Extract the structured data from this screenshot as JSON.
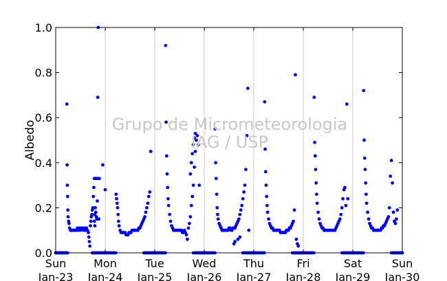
{
  "chart_data": {
    "type": "scatter",
    "title": "",
    "xlabel": "",
    "ylabel": "Albedo",
    "ylim": [
      0.0,
      1.0
    ],
    "xlim": [
      "2011-01-23",
      "2011-01-30"
    ],
    "grid": "vertical lines at day boundaries",
    "legend": "none",
    "marker_color": "#0000ff",
    "watermark": [
      "Grupo de Micrometeorologia",
      "IAG / USP"
    ],
    "yticks": [
      "0.0",
      "0.2",
      "0.4",
      "0.6",
      "0.8",
      "1.0"
    ],
    "xticks": [
      {
        "day": "Sun",
        "date": "Jan-23"
      },
      {
        "day": "Mon",
        "date": "Jan-24"
      },
      {
        "day": "Tue",
        "date": "Jan-25"
      },
      {
        "day": "Wed",
        "date": "Jan-26"
      },
      {
        "day": "Thu",
        "date": "Jan-27"
      },
      {
        "day": "Fri",
        "date": "Jan-28"
      },
      {
        "day": "Sat",
        "date": "Jan-29"
      },
      {
        "day": "Sun",
        "date": "Jan-30"
      }
    ],
    "series": [
      {
        "values_description": "daily daytime albedo; x in days since Jan-23 00:00",
        "x": [
          0.0,
          0.04,
          0.08,
          0.12,
          0.16,
          0.2,
          0.24,
          0.225,
          0.23,
          0.235,
          0.24,
          0.245,
          0.25,
          0.26,
          0.27,
          0.28,
          0.3,
          0.32,
          0.34,
          0.36,
          0.38,
          0.4,
          0.42,
          0.44,
          0.46,
          0.48,
          0.5,
          0.52,
          0.54,
          0.56,
          0.58,
          0.6,
          0.62,
          0.64,
          0.66,
          0.67,
          0.68,
          0.69,
          0.7,
          0.71,
          0.72,
          0.73,
          0.74,
          0.75,
          0.76,
          0.77,
          0.78,
          0.79,
          0.8,
          0.81,
          0.82,
          0.83,
          0.84,
          0.85,
          0.86,
          0.87,
          0.88,
          0.8,
          0.83,
          0.85,
          0.87,
          0.78,
          0.79,
          0.76,
          0.74,
          0.9,
          0.95,
          1.0,
          1.22,
          1.23,
          1.24,
          1.25,
          1.26,
          1.27,
          1.28,
          1.3,
          1.32,
          1.34,
          1.36,
          1.38,
          1.4,
          1.42,
          1.44,
          1.46,
          1.48,
          1.5,
          1.52,
          1.54,
          1.56,
          1.58,
          1.6,
          1.62,
          1.64,
          1.66,
          1.68,
          1.7,
          1.72,
          1.74,
          1.76,
          1.78,
          1.8,
          1.82,
          1.84,
          1.86,
          1.88,
          1.9,
          1.92,
          1.95,
          2.0,
          2.22,
          2.23,
          2.24,
          2.25,
          2.26,
          2.27,
          2.28,
          2.3,
          2.32,
          2.34,
          2.36,
          2.38,
          2.4,
          2.42,
          2.44,
          2.46,
          2.48,
          2.5,
          2.52,
          2.54,
          2.56,
          2.58,
          2.6,
          2.62,
          2.64,
          2.66,
          2.68,
          2.7,
          2.72,
          2.74,
          2.76,
          2.78,
          2.8,
          2.82,
          2.84,
          2.86,
          2.88,
          2.9,
          2.72,
          2.74,
          2.76,
          2.78,
          2.8,
          2.82,
          2.95,
          3.0,
          3.22,
          3.23,
          3.24,
          3.25,
          3.26,
          3.27,
          3.28,
          3.3,
          3.32,
          3.34,
          3.36,
          3.38,
          3.4,
          3.42,
          3.44,
          3.46,
          3.48,
          3.5,
          3.52,
          3.54,
          3.56,
          3.58,
          3.6,
          3.62,
          3.64,
          3.66,
          3.68,
          3.7,
          3.72,
          3.74,
          3.76,
          3.78,
          3.8,
          3.82,
          3.84,
          3.86,
          3.88,
          3.9,
          3.6,
          3.62,
          3.68,
          3.72,
          3.95,
          4.0,
          4.22,
          4.23,
          4.24,
          4.25,
          4.26,
          4.27,
          4.28,
          4.3,
          4.32,
          4.34,
          4.36,
          4.38,
          4.4,
          4.42,
          4.44,
          4.46,
          4.48,
          4.5,
          4.52,
          4.54,
          4.56,
          4.58,
          4.6,
          4.62,
          4.64,
          4.66,
          4.68,
          4.7,
          4.72,
          4.74,
          4.76,
          4.78,
          4.8,
          4.82,
          4.84,
          4.86,
          4.88,
          4.9,
          4.95,
          5.0,
          5.22,
          5.23,
          5.24,
          5.25,
          5.26,
          5.27,
          5.28,
          5.3,
          5.32,
          5.34,
          5.36,
          5.38,
          5.4,
          5.42,
          5.44,
          5.46,
          5.48,
          5.5,
          5.52,
          5.54,
          5.56,
          5.58,
          5.6,
          5.62,
          5.64,
          5.66,
          5.68,
          5.7,
          5.72,
          5.74,
          5.76,
          5.78,
          5.8,
          5.82,
          5.84,
          5.86,
          5.88,
          5.9,
          5.95,
          6.0,
          6.22,
          6.23,
          6.24,
          6.25,
          6.26,
          6.27,
          6.28,
          6.3,
          6.32,
          6.34,
          6.36,
          6.38,
          6.4,
          6.42,
          6.44,
          6.46,
          6.48,
          6.5,
          6.52,
          6.54,
          6.56,
          6.58,
          6.6,
          6.62,
          6.64,
          6.66,
          6.68,
          6.7,
          6.72,
          6.74,
          6.76,
          6.78,
          6.8,
          6.82,
          6.84,
          6.86,
          6.88,
          6.9,
          6.95,
          7.0
        ],
        "y": [
          0,
          0,
          0,
          0,
          0,
          0,
          0,
          0.66,
          0.39,
          0.3,
          0.25,
          0.19,
          0.16,
          0.14,
          0.13,
          0.11,
          0.1,
          0.1,
          0.1,
          0.1,
          0.1,
          0.1,
          0.1,
          0.11,
          0.1,
          0.11,
          0.1,
          0.11,
          0.11,
          0.1,
          0.11,
          0.1,
          0.11,
          0.1,
          0.09,
          0.07,
          0.05,
          0.03,
          0.12,
          0.14,
          0.16,
          0.17,
          0.19,
          0.2,
          0.25,
          0.29,
          0.33,
          0.17,
          0.2,
          0.18,
          0.16,
          0.15,
          0.23,
          0.69,
          1.0,
          0.33,
          0.33,
          0.33,
          0.33,
          0.15,
          0.15,
          0.14,
          0.12,
          0,
          0,
          0,
          0.39,
          0.28,
          0.26,
          0.24,
          0.22,
          0.2,
          0.17,
          0.14,
          0.12,
          0.1,
          0.09,
          0.09,
          0.09,
          0.09,
          0.09,
          0.08,
          0.08,
          0.08,
          0.09,
          0.09,
          0.09,
          0.1,
          0.1,
          0.1,
          0.1,
          0.1,
          0.1,
          0.1,
          0.11,
          0.11,
          0.12,
          0.13,
          0.14,
          0.15,
          0.16,
          0.18,
          0.2,
          0.22,
          0.25,
          0.27,
          0.45,
          0,
          0,
          0.92,
          0.58,
          0.43,
          0.35,
          0.29,
          0.24,
          0.21,
          0.17,
          0.14,
          0.12,
          0.11,
          0.1,
          0.1,
          0.1,
          0.1,
          0.1,
          0.1,
          0.1,
          0.1,
          0.1,
          0.09,
          0.09,
          0.1,
          0.09,
          0.08,
          0.06,
          0.11,
          0.13,
          0.16,
          0.21,
          0.25,
          0.3,
          0.38,
          0.45,
          0.5,
          0.52,
          0.48,
          0.3,
          0.35,
          0.4,
          0.44,
          0.48,
          0.51,
          0.53,
          0,
          0,
          0.55,
          0.4,
          0.33,
          0.26,
          0.2,
          0.17,
          0.15,
          0.13,
          0.12,
          0.11,
          0.1,
          0.1,
          0.1,
          0.1,
          0.1,
          0.1,
          0.1,
          0.11,
          0.11,
          0.1,
          0.1,
          0.11,
          0.11,
          0.11,
          0.12,
          0.13,
          0.14,
          0.15,
          0.17,
          0.19,
          0.21,
          0.24,
          0.27,
          0.3,
          0.37,
          0.52,
          0.73,
          0.1,
          0.04,
          0.05,
          0.06,
          0.07,
          0,
          0,
          0.67,
          0.46,
          0.36,
          0.3,
          0.25,
          0.21,
          0.18,
          0.15,
          0.13,
          0.12,
          0.11,
          0.11,
          0.1,
          0.1,
          0.1,
          0.1,
          0.1,
          0.1,
          0.1,
          0.09,
          0.09,
          0.09,
          0.09,
          0.09,
          0.09,
          0.1,
          0.1,
          0.1,
          0.11,
          0.11,
          0.12,
          0.13,
          0.14,
          0.19,
          0.79,
          0.06,
          0.04,
          0.03,
          0,
          0,
          0.69,
          0.49,
          0.43,
          0.37,
          0.31,
          0.26,
          0.22,
          0.18,
          0.15,
          0.13,
          0.12,
          0.11,
          0.11,
          0.1,
          0.1,
          0.1,
          0.1,
          0.1,
          0.1,
          0.1,
          0.1,
          0.1,
          0.1,
          0.1,
          0.1,
          0.11,
          0.12,
          0.13,
          0.14,
          0.15,
          0.17,
          0.2,
          0.24,
          0.28,
          0.29,
          0.21,
          0.66,
          0.24,
          0,
          0,
          0.72,
          0.5,
          0.42,
          0.37,
          0.31,
          0.26,
          0.22,
          0.18,
          0.15,
          0.13,
          0.12,
          0.11,
          0.11,
          0.1,
          0.1,
          0.1,
          0.1,
          0.1,
          0.1,
          0.1,
          0.1,
          0.11,
          0.11,
          0.12,
          0.12,
          0.13,
          0.14,
          0.15,
          0.16,
          0.2,
          0.34,
          0.41,
          0.31,
          0.18,
          0.14,
          0.13,
          0.15,
          0.19,
          0,
          0
        ]
      }
    ]
  }
}
